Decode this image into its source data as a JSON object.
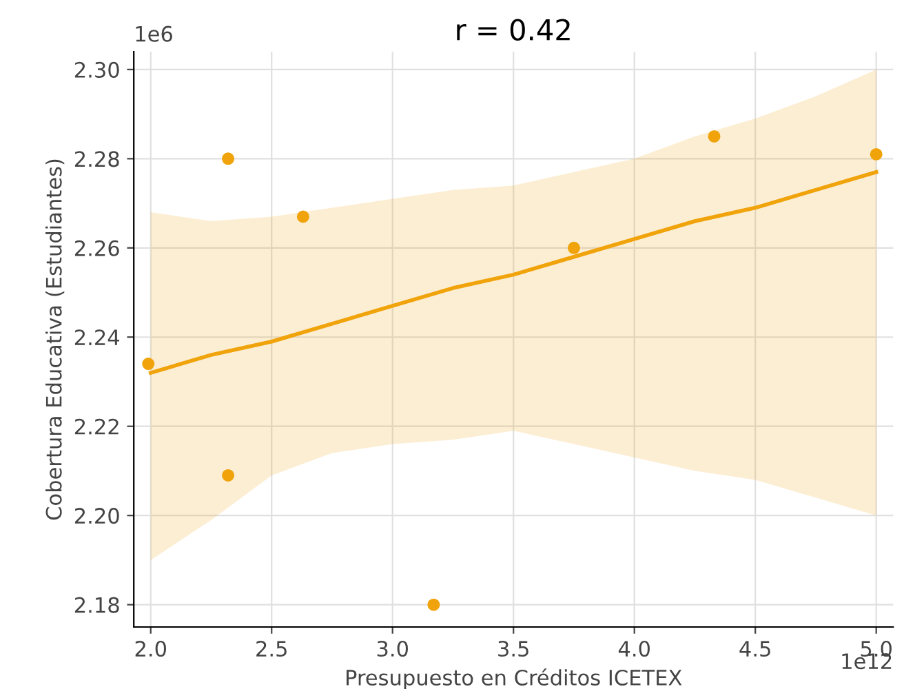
{
  "chart_data": {
    "type": "scatter",
    "title": "r = 0.42",
    "xlabel": "Presupuesto en Créditos ICETEX",
    "ylabel": "Cobertura Educativa (Estudiantes)",
    "annotations": [
      "1e12",
      "1e6"
    ],
    "x": [
      1.99,
      2.32,
      2.32,
      2.63,
      3.17,
      3.75,
      4.33,
      5.0
    ],
    "series": [
      {
        "color": "#f0a30a",
        "marker": "circle",
        "values": [
          2.234,
          2.28,
          2.209,
          2.267,
          2.18,
          2.26,
          2.285,
          2.281
        ]
      },
      {
        "type": "line",
        "color": "#f0a30a",
        "x": [
          2.0,
          2.25,
          2.5,
          2.75,
          3.0,
          3.25,
          3.5,
          3.75,
          4.0,
          4.25,
          4.5,
          4.75,
          5.0
        ],
        "values": [
          2.232,
          2.236,
          2.239,
          2.243,
          2.247,
          2.251,
          2.254,
          2.258,
          2.262,
          2.266,
          2.269,
          2.273,
          2.277
        ],
        "upper": [
          2.268,
          2.266,
          2.267,
          2.269,
          2.271,
          2.273,
          2.274,
          2.277,
          2.28,
          2.285,
          2.289,
          2.294,
          2.3
        ],
        "lower": [
          2.19,
          2.199,
          2.209,
          2.214,
          2.216,
          2.217,
          2.219,
          2.216,
          2.213,
          2.21,
          2.208,
          2.204,
          2.2
        ]
      }
    ],
    "xlim": [
      1.93,
      5.07
    ],
    "ylim": [
      2.175,
      2.304
    ],
    "xticks": [
      {
        "value": 2.0,
        "label": "2.0"
      },
      2.5,
      {
        "value": 3.0,
        "label": "3.0"
      },
      3.5,
      {
        "value": 4.0,
        "label": "4.0"
      },
      4.5,
      {
        "value": 5.0,
        "label": "5.0"
      }
    ],
    "yticks": [
      2.18,
      {
        "value": 2.2,
        "label": "2.20"
      },
      2.22,
      2.24,
      2.26,
      2.28,
      {
        "value": 2.3,
        "label": "2.30"
      }
    ],
    "grid": true
  }
}
